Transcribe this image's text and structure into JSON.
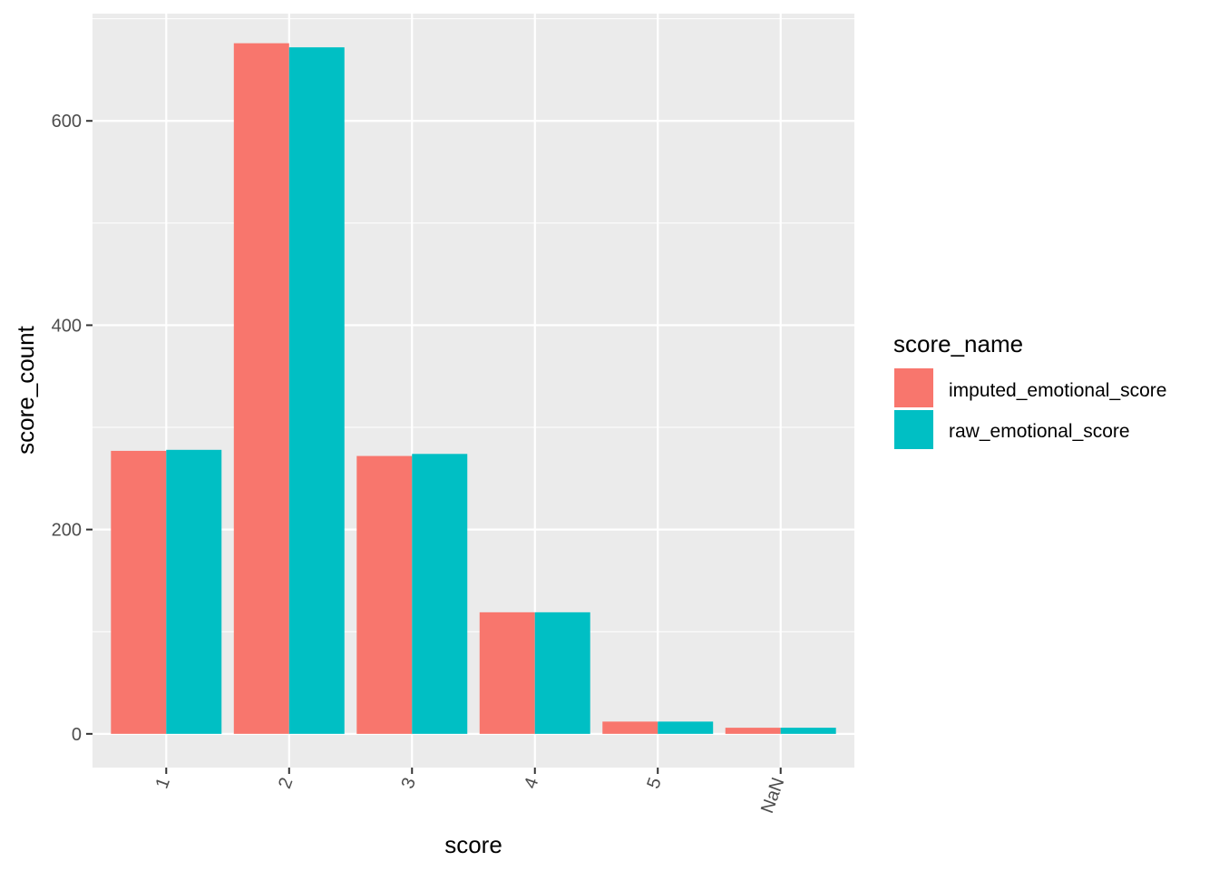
{
  "chart_data": {
    "type": "bar",
    "xlabel": "score",
    "ylabel": "score_count",
    "categories": [
      "1",
      "2",
      "3",
      "4",
      "5",
      "NaN"
    ],
    "series": [
      {
        "name": "imputed_emotional_score",
        "color": "#F8766D",
        "values": [
          277,
          676,
          272,
          119,
          12,
          6
        ]
      },
      {
        "name": "raw_emotional_score",
        "color": "#00BFC4",
        "values": [
          278,
          672,
          274,
          119,
          12,
          6
        ]
      }
    ],
    "ylim": [
      -33,
      705
    ],
    "yticks": [
      0,
      200,
      400,
      600
    ],
    "grid": true,
    "legend": {
      "title": "score_name",
      "position": "right"
    },
    "x_tick_rotation": "angled"
  }
}
